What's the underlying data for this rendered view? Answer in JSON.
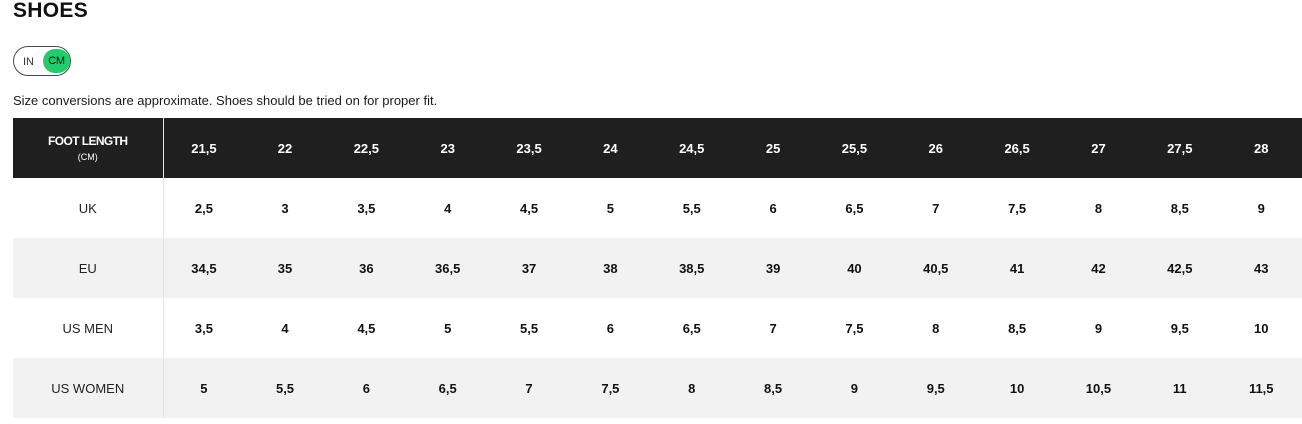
{
  "page": {
    "title": "SHOES",
    "note": "Size conversions are approximate. Shoes should be tried on for proper fit."
  },
  "unit_toggle": {
    "off_label": "IN",
    "on_label": "CM",
    "selected": "CM",
    "active_color": "#22cc6c"
  },
  "colors": {
    "header_bg": "#1f1f1f",
    "stripe_bg": "#f2f2f2"
  },
  "size_table": {
    "header": {
      "label_line1": "FOOT LENGTH",
      "label_line2": "(CM)",
      "values": [
        "21,5",
        "22",
        "22,5",
        "23",
        "23,5",
        "24",
        "24,5",
        "25",
        "25,5",
        "26",
        "26,5",
        "27",
        "27,5",
        "28"
      ]
    },
    "rows": [
      {
        "label": "UK",
        "values": [
          "2,5",
          "3",
          "3,5",
          "4",
          "4,5",
          "5",
          "5,5",
          "6",
          "6,5",
          "7",
          "7,5",
          "8",
          "8,5",
          "9"
        ]
      },
      {
        "label": "EU",
        "values": [
          "34,5",
          "35",
          "36",
          "36,5",
          "37",
          "38",
          "38,5",
          "39",
          "40",
          "40,5",
          "41",
          "42",
          "42,5",
          "43"
        ]
      },
      {
        "label": "US MEN",
        "values": [
          "3,5",
          "4",
          "4,5",
          "5",
          "5,5",
          "6",
          "6,5",
          "7",
          "7,5",
          "8",
          "8,5",
          "9",
          "9,5",
          "10"
        ]
      },
      {
        "label": "US WOMEN",
        "values": [
          "5",
          "5,5",
          "6",
          "6,5",
          "7",
          "7,5",
          "8",
          "8,5",
          "9",
          "9,5",
          "10",
          "10,5",
          "11",
          "11,5"
        ]
      }
    ]
  }
}
